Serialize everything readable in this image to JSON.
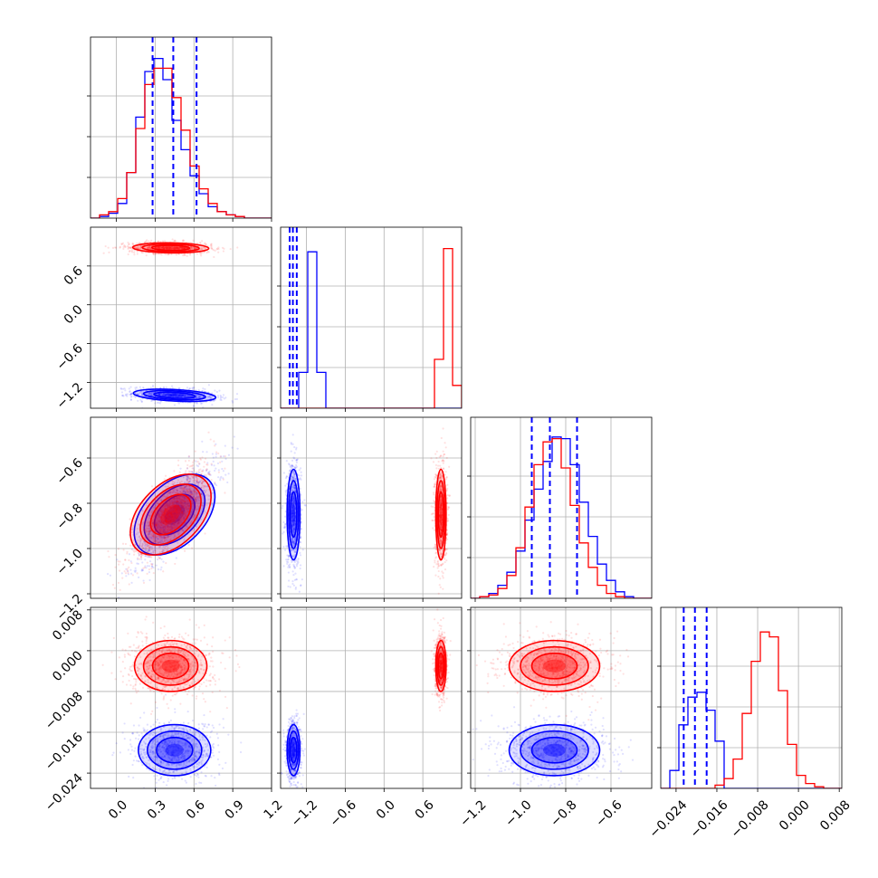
{
  "chart_data": {
    "type": "corner",
    "colors": {
      "series_a": "#0000ff",
      "series_b": "#ff0000",
      "grid": "#b0b0b0"
    },
    "grid": true,
    "parameters": [
      {
        "range": [
          -0.2,
          1.2
        ],
        "ticks": [
          0.0,
          0.3,
          0.6,
          0.9,
          1.2
        ],
        "tick_labels": [
          "0.0",
          "0.3",
          "0.6",
          "0.9",
          "1.2"
        ]
      },
      {
        "range": [
          -1.6,
          1.2
        ],
        "ticks": [
          -1.2,
          -0.6,
          0.0,
          0.6
        ],
        "tick_labels": [
          "−1.2",
          "−0.6",
          "0.0",
          "0.6"
        ]
      },
      {
        "range": [
          -1.22,
          -0.42
        ],
        "ticks": [
          -1.2,
          -1.0,
          -0.8,
          -0.6
        ],
        "tick_labels": [
          "−1.2",
          "−1.0",
          "−0.8",
          "−0.6"
        ]
      },
      {
        "range": [
          -0.027,
          0.0085
        ],
        "ticks": [
          -0.024,
          -0.016,
          -0.008,
          0.0,
          0.008
        ],
        "tick_labels": [
          "−0.024",
          "−0.016",
          "−0.008",
          "0.000",
          "0.008"
        ]
      }
    ],
    "series": [
      {
        "color": "#0000ff",
        "means": [
          0.45,
          -1.4,
          -0.85,
          -0.0195
        ],
        "stds": [
          0.14,
          0.05,
          0.1,
          0.0025
        ],
        "quantiles": [
          [
            0.28,
            0.44,
            0.62
          ],
          [
            -1.46,
            -1.41,
            -1.35
          ],
          [
            -0.95,
            -0.87,
            -0.75
          ],
          [
            -0.0225,
            -0.0203,
            -0.018
          ]
        ],
        "correlations": {
          "0-1": -0.3,
          "0-2": 0.8,
          "0-3": 0.0,
          "1-2": 0.0,
          "1-3": 0.0,
          "2-3": 0.0
        },
        "hists": [
          [
            0.0,
            0.01,
            0.03,
            0.09,
            0.28,
            0.62,
            0.9,
            0.98,
            0.85,
            0.6,
            0.42,
            0.26,
            0.15,
            0.07,
            0.04,
            0.02,
            0.01,
            0.0,
            0.0,
            0.0
          ],
          [
            0.0,
            0.0,
            0.22,
            0.96,
            0.22,
            0.0,
            0.0,
            0.0,
            0.0,
            0.0,
            0.0,
            0.0,
            0.0,
            0.0,
            0.0,
            0.0,
            0.0,
            0.0,
            0.0,
            0.0
          ],
          [
            0.0,
            0.01,
            0.03,
            0.08,
            0.16,
            0.29,
            0.48,
            0.67,
            0.84,
            0.99,
            0.98,
            0.82,
            0.59,
            0.38,
            0.21,
            0.11,
            0.04,
            0.01,
            0.0,
            0.0
          ],
          [
            0.0,
            0.11,
            0.39,
            0.56,
            0.59,
            0.48,
            0.29,
            0.0,
            0.0,
            0.0,
            0.0,
            0.0,
            0.0,
            0.0,
            0.0,
            0.0,
            0.0,
            0.0,
            0.0,
            0.0
          ]
        ]
      },
      {
        "color": "#ff0000",
        "means": [
          0.42,
          0.88,
          -0.85,
          -0.003
        ],
        "stds": [
          0.14,
          0.04,
          0.1,
          0.0025
        ],
        "correlations": {
          "0-1": -0.1,
          "0-2": 0.8,
          "0-3": 0.0,
          "1-2": 0.0,
          "1-3": 0.0,
          "2-3": 0.0
        },
        "hists": [
          [
            0.0,
            0.02,
            0.04,
            0.12,
            0.28,
            0.55,
            0.82,
            0.92,
            0.92,
            0.74,
            0.54,
            0.32,
            0.18,
            0.09,
            0.04,
            0.02,
            0.01,
            0.0,
            0.0,
            0.0
          ],
          [
            0.0,
            0.0,
            0.0,
            0.0,
            0.0,
            0.0,
            0.0,
            0.0,
            0.0,
            0.0,
            0.0,
            0.0,
            0.0,
            0.0,
            0.0,
            0.0,
            0.0,
            0.3,
            0.98,
            0.14
          ],
          [
            0.0,
            0.01,
            0.02,
            0.06,
            0.14,
            0.31,
            0.56,
            0.82,
            0.96,
            0.98,
            0.8,
            0.57,
            0.34,
            0.19,
            0.08,
            0.03,
            0.01,
            0.0,
            0.0,
            0.0
          ],
          [
            0.0,
            0.0,
            0.0,
            0.0,
            0.0,
            0.0,
            0.02,
            0.06,
            0.18,
            0.46,
            0.78,
            0.96,
            0.93,
            0.6,
            0.27,
            0.08,
            0.03,
            0.01,
            0.0,
            0.0
          ]
        ]
      }
    ]
  }
}
